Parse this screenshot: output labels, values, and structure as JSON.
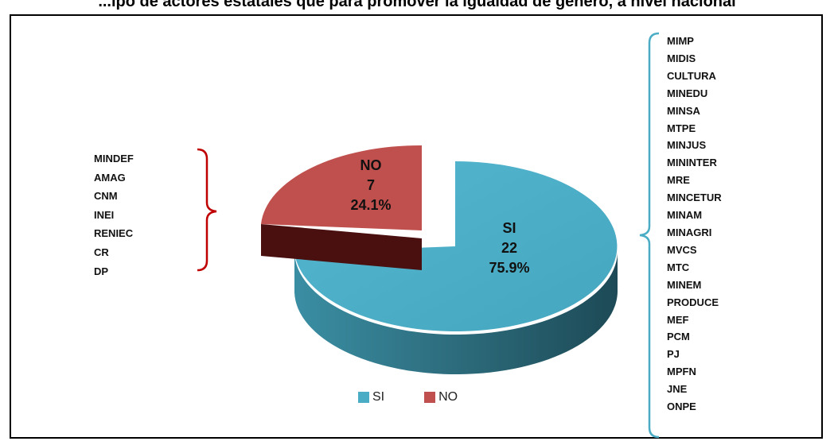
{
  "chart_data": {
    "type": "pie",
    "title": "...ipo de actores estatales que para promover la igualdad de género, a nivel nacional",
    "categories": [
      "SI",
      "NO"
    ],
    "values": [
      22,
      7
    ],
    "percent_labels": [
      "75.9%",
      "24.1%"
    ],
    "colors": [
      "#4BACC6",
      "#C0504D"
    ],
    "legend_position": "bottom",
    "legend": [
      {
        "label": "SI",
        "color": "#4BACC6"
      },
      {
        "label": "NO",
        "color": "#C0504D"
      }
    ]
  },
  "annotations": {
    "no_group": [
      "MINDEF",
      "AMAG",
      "CNM",
      "INEI",
      "RENIEC",
      "CR",
      "DP"
    ],
    "si_group": [
      "MIMP",
      "MIDIS",
      "CULTURA",
      "MINEDU",
      "MINSA",
      "MTPE",
      "MINJUS",
      "MININTER",
      "MRE",
      "MINCETUR",
      "MINAM",
      "MINAGRI",
      "MVCS",
      "MTC",
      "MINEM",
      "PRODUCE",
      "MEF",
      "PCM",
      "PJ",
      "MPFN",
      "JNE",
      "ONPE"
    ],
    "bracket_color_no": "#C00000",
    "bracket_color_si": "#4BACC6"
  }
}
